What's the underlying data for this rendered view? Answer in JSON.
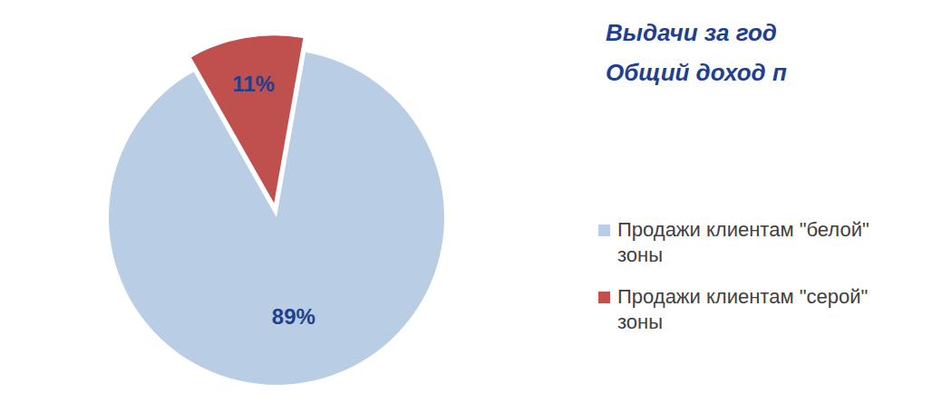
{
  "chart_data": {
    "type": "pie",
    "title": "Выдачи за год",
    "subtitle": "Общий доход п",
    "categories": [
      "Продажи клиентам \"белой\" зоны",
      "Продажи клиентам \"серой\" зоны"
    ],
    "values": [
      89,
      11
    ],
    "value_labels": [
      "89%",
      "11%"
    ],
    "colors": [
      "#b9cde5",
      "#c0504d"
    ],
    "data_labels": true,
    "legend": "right"
  }
}
